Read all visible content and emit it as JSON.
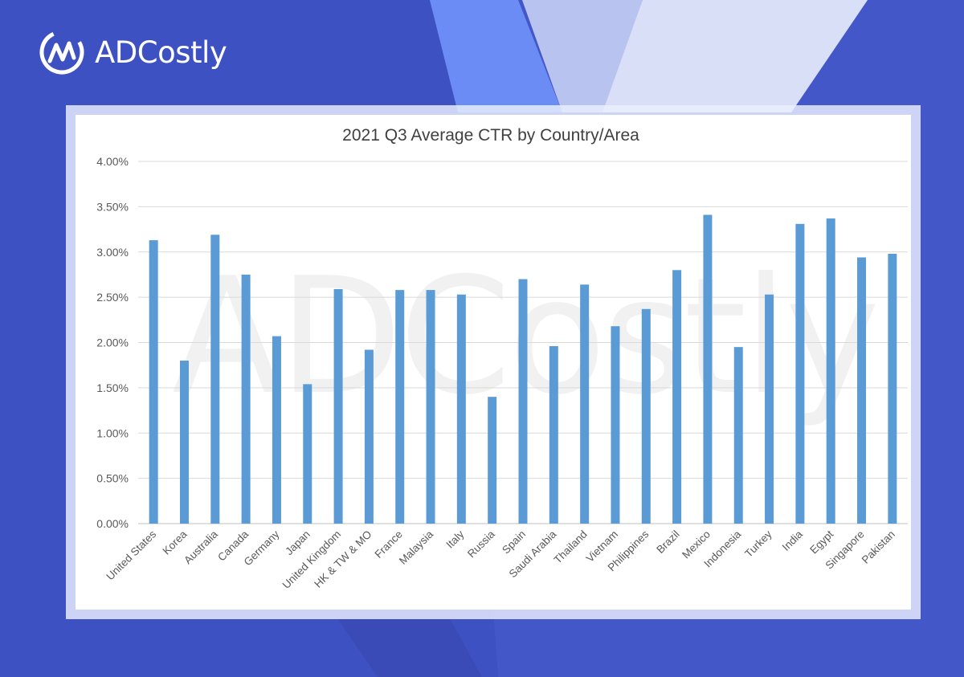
{
  "brand": {
    "name": "ADCostly",
    "logo_icon": "adcostly-logo-icon",
    "accent": "#4457c9"
  },
  "watermark": "ADCostly",
  "chart_data": {
    "type": "bar",
    "title": "2021 Q3 Average CTR by Country/Area",
    "xlabel": "",
    "ylabel": "",
    "ylim": [
      0,
      4.0
    ],
    "yticks": [
      "0.00%",
      "0.50%",
      "1.00%",
      "1.50%",
      "2.00%",
      "2.50%",
      "3.00%",
      "3.50%",
      "4.00%"
    ],
    "ytick_values": [
      0,
      0.5,
      1.0,
      1.5,
      2.0,
      2.5,
      3.0,
      3.5,
      4.0
    ],
    "grid": true,
    "bar_color": "#5b9bd5",
    "categories": [
      "United States",
      "Korea",
      "Australia",
      "Canada",
      "Germany",
      "Japan",
      "United Kingdom",
      "HK & TW & MO",
      "France",
      "Malaysia",
      "Italy",
      "Russia",
      "Spain",
      "Saudi Arabia",
      "Thailand",
      "Vietnam",
      "Philippines",
      "Brazil",
      "Mexico",
      "Indonesia",
      "Turkey",
      "India",
      "Egypt",
      "Singapore",
      "Pakistan"
    ],
    "values": [
      3.13,
      1.8,
      3.19,
      2.75,
      2.07,
      1.54,
      2.59,
      1.92,
      2.58,
      2.58,
      2.53,
      1.4,
      2.7,
      1.96,
      2.64,
      2.18,
      2.37,
      2.8,
      3.41,
      1.95,
      2.53,
      3.31,
      3.37,
      2.94,
      2.98
    ]
  }
}
